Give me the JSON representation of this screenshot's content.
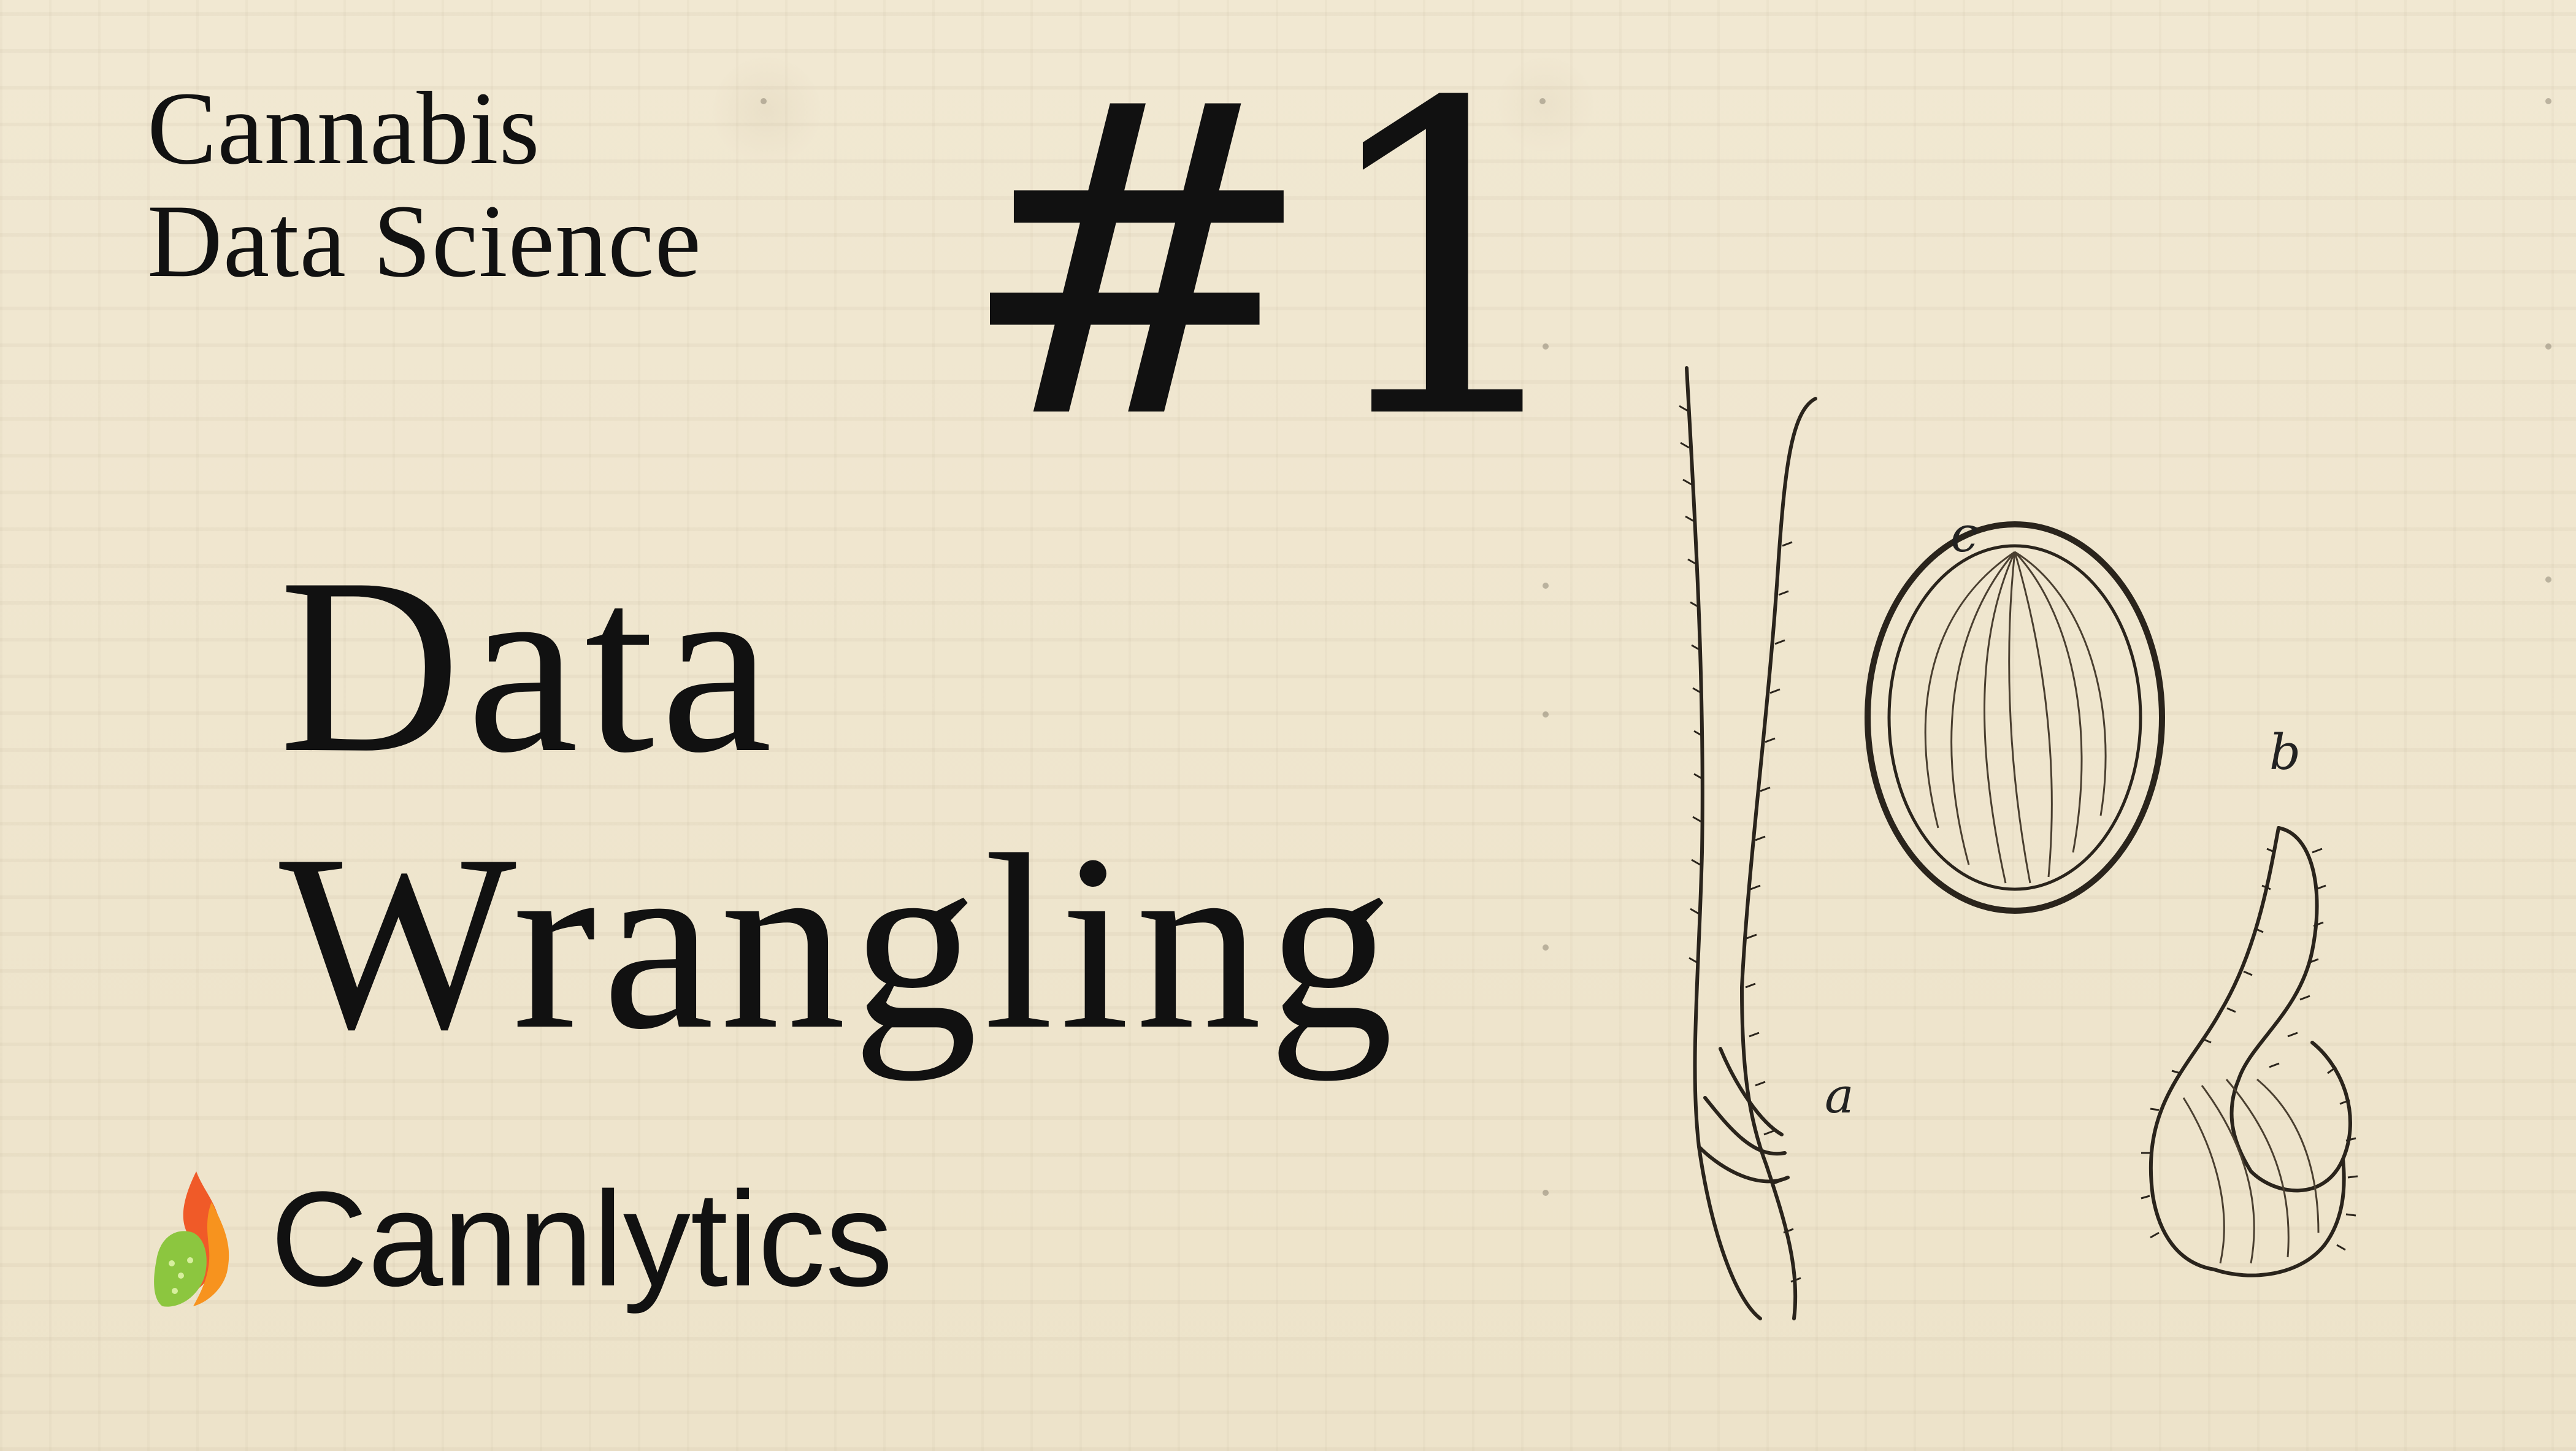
{
  "series": {
    "line1": "Cannabis",
    "line2": "Data Science"
  },
  "episode": {
    "number": "#1"
  },
  "title": {
    "line1": "Data",
    "line2": "Wrangling"
  },
  "brand": {
    "name": "Cannlytics",
    "logo_icon": "flame-leaf-icon",
    "colors": {
      "flame_top": "#f05a28",
      "flame_mid": "#f7931e",
      "leaf": "#8cc63f"
    }
  },
  "illustration": {
    "labels": {
      "a": "a",
      "b": "b",
      "c": "c"
    }
  },
  "colors": {
    "background": "#efe6cf",
    "text": "#111111"
  }
}
